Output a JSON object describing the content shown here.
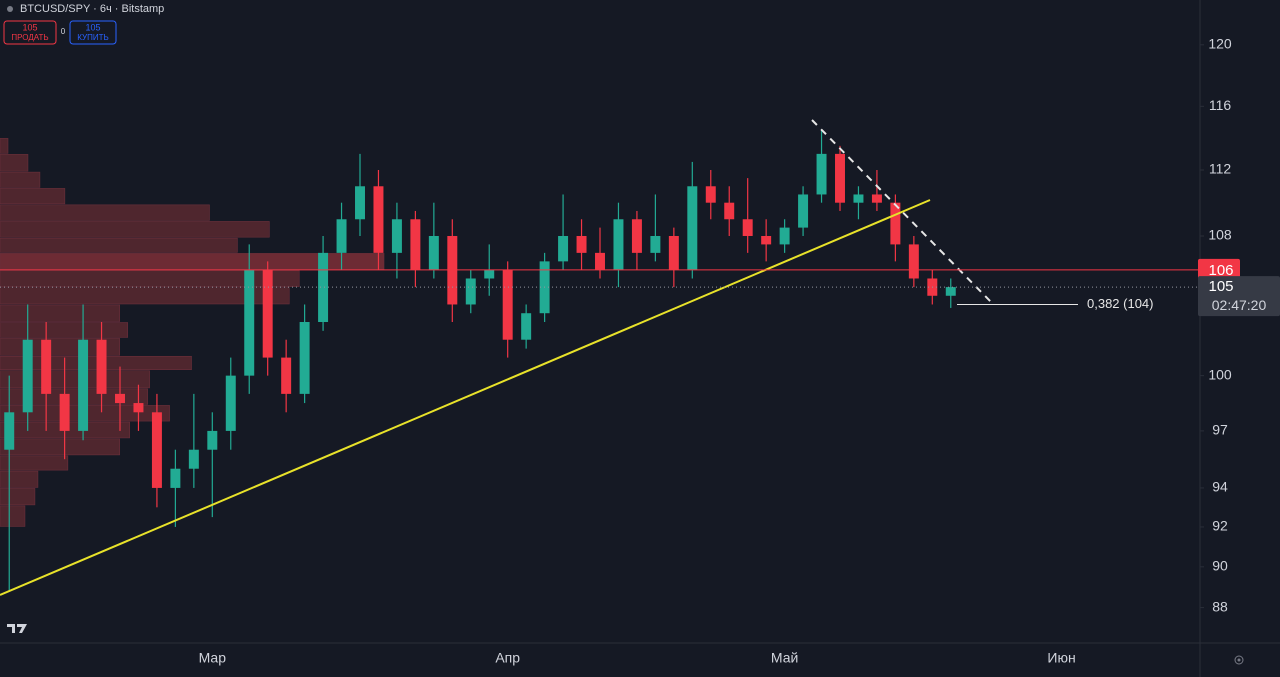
{
  "header": {
    "title": "BTCUSD/SPY · 6ч · Bitstamp",
    "sell": {
      "price": "105",
      "label": "ПРОДАТЬ"
    },
    "spread": "0",
    "buy": {
      "price": "105",
      "label": "КУПИТЬ"
    }
  },
  "chart_data": {
    "type": "candlestick",
    "categories": [
      null,
      null,
      null,
      null,
      null,
      null,
      null,
      null,
      null,
      null,
      null,
      "Мар",
      null,
      null,
      null,
      null,
      null,
      null,
      null,
      null,
      null,
      null,
      null,
      null,
      null,
      null,
      null,
      "Апр",
      null,
      null,
      null,
      null,
      null,
      null,
      null,
      null,
      null,
      null,
      null,
      null,
      null,
      null,
      "Май",
      null,
      null,
      null,
      null,
      null,
      null,
      null,
      null,
      null,
      null,
      null,
      null,
      null,
      null,
      "Июн",
      null,
      null,
      null,
      null,
      null,
      null,
      null
    ],
    "open": [
      96,
      98,
      102,
      99,
      97,
      102,
      99,
      98.5,
      98,
      94,
      95,
      96,
      97,
      100,
      106,
      101,
      99,
      103,
      107,
      109,
      111,
      107,
      109,
      106,
      108,
      104,
      105.5,
      106,
      102,
      103.5,
      106.5,
      108,
      107,
      106,
      109,
      107,
      108,
      106,
      111,
      110,
      109,
      108,
      107.5,
      108.5,
      110.5,
      113,
      110,
      110.5,
      110,
      107.5,
      105.5,
      104.5,
      null,
      null,
      null,
      null,
      null,
      null,
      null,
      null,
      null,
      null,
      null,
      null,
      null
    ],
    "high": [
      100,
      104,
      103,
      101,
      104,
      103,
      100.5,
      99.5,
      99,
      96,
      99,
      98,
      101,
      107.5,
      106.5,
      102,
      104,
      108,
      110,
      113,
      112,
      110,
      109.5,
      110,
      109,
      106,
      107.5,
      106.5,
      104,
      107,
      110.5,
      109,
      108.5,
      110,
      109.5,
      110.5,
      108.5,
      112.5,
      112,
      111,
      111.5,
      109,
      109,
      111,
      114.5,
      113.5,
      111,
      112,
      110.5,
      108,
      106,
      105.5,
      null,
      null,
      null,
      null,
      null,
      null,
      null,
      null,
      null,
      null,
      null,
      null,
      null
    ],
    "low": [
      88.8,
      97,
      97,
      95.5,
      96.5,
      98,
      97,
      97,
      93,
      92,
      94,
      92.5,
      96,
      99,
      100,
      98,
      98.5,
      102.5,
      106,
      108,
      106,
      105.5,
      105,
      105.5,
      103,
      103.5,
      104.5,
      101,
      101.5,
      103,
      106,
      106,
      105.5,
      105,
      106,
      106.5,
      105,
      105.5,
      109,
      108,
      107,
      106.5,
      107,
      108,
      110,
      109.5,
      109,
      109.5,
      106.5,
      105,
      104,
      103.8,
      null,
      null,
      null,
      null,
      null,
      null,
      null,
      null,
      null,
      null,
      null,
      null,
      null
    ],
    "close": [
      98,
      102,
      99,
      97,
      102,
      99,
      98.5,
      98,
      94,
      95,
      96,
      97,
      100,
      106,
      101,
      99,
      103,
      107,
      109,
      111,
      107,
      109,
      106,
      108,
      104,
      105.5,
      106,
      102,
      103.5,
      106.5,
      108,
      107,
      106,
      109,
      107,
      108,
      106,
      111,
      110,
      109,
      108,
      107.5,
      108.5,
      110.5,
      113,
      110,
      110.5,
      110,
      107.5,
      105.5,
      104.5,
      105,
      null,
      null,
      null,
      null,
      null,
      null,
      null,
      null,
      null,
      null,
      null,
      null,
      null
    ],
    "up_color": "#22ab94",
    "down_color": "#f23645",
    "ylim": [
      86.3,
      123
    ],
    "log_scale": true,
    "yticks": [
      88,
      90,
      92,
      94,
      97,
      100,
      108,
      112,
      116,
      120
    ],
    "grid": false,
    "volume_profile": {
      "bins": [
        92,
        93.1,
        94,
        94.9,
        95.7,
        96.6,
        97.5,
        98.4,
        99.3,
        100.3,
        101.1,
        102.1,
        103,
        104,
        105,
        106,
        107,
        107.9,
        108.9,
        109.9,
        110.9,
        111.9,
        113,
        114
      ],
      "values": [
        25,
        35,
        38,
        68,
        120,
        130,
        170,
        148,
        150,
        192,
        120,
        128,
        120,
        290,
        300,
        385,
        238,
        270,
        210,
        65,
        40,
        28,
        8
      ],
      "color": "#5a2930",
      "poc_color": "#7d2f37"
    },
    "price_line": {
      "value": 106,
      "color": "#f23645"
    },
    "last_price": {
      "value": 105,
      "countdown": "02:47:20"
    },
    "fib_level": {
      "value": 104,
      "label": "0,382 (104)"
    }
  }
}
